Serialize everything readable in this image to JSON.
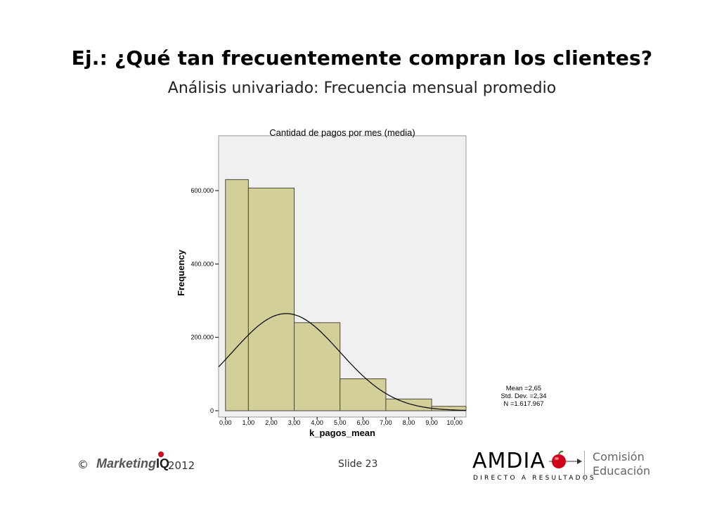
{
  "slide": {
    "title": "Ej.: ¿Qué tan frecuentemente compran los clientes?",
    "subtitle": "Análisis univariado: Frecuencia mensual promedio",
    "footer": {
      "copyright": "©",
      "logo_text": "Marketing",
      "logo_iq": "IQ",
      "year": "2012",
      "slide_label": "Slide  23",
      "brand": "AMDIA",
      "brand_tagline": "DIRECTO A RESULTADOS",
      "commission_line1": "Comisión",
      "commission_line2": "Educación",
      "brand_accent": "#d0021b"
    }
  },
  "chart_data": {
    "type": "bar",
    "title": "Cantidad de pagos por mes (media)",
    "xlabel": "k_pagos_mean",
    "ylabel": "Frequency",
    "xlim": [
      -0.3,
      10.5
    ],
    "ylim": [
      0,
      740000
    ],
    "x_ticks": [
      0,
      1,
      2,
      3,
      4,
      5,
      6,
      7,
      8,
      9,
      10
    ],
    "x_tick_labels": [
      "0,00",
      "1,00",
      "2,00",
      "3,00",
      "4,00",
      "5,00",
      "6,00",
      "7,00",
      "8,00",
      "9,00",
      "10,00"
    ],
    "y_ticks": [
      0,
      200000,
      400000,
      600000
    ],
    "y_tick_labels": [
      "0",
      "200.000",
      "400.000",
      "600.000"
    ],
    "bins": [
      {
        "x0": 0,
        "x1": 1,
        "value": 630000
      },
      {
        "x0": 1,
        "x1": 3,
        "value": 607000
      },
      {
        "x0": 3,
        "x1": 5,
        "value": 240000
      },
      {
        "x0": 5,
        "x1": 7,
        "value": 87000
      },
      {
        "x0": 7,
        "x1": 9,
        "value": 32000
      },
      {
        "x0": 9,
        "x1": 10.5,
        "value": 12000
      }
    ],
    "normal_curve": {
      "mean": 2.65,
      "std_dev": 2.34,
      "n": 1617967,
      "bin_width": 2
    },
    "stats_labels": [
      "Mean =2,65",
      "Std. Dev. =2,34",
      "N =1.617.967"
    ],
    "colors": {
      "bar_fill": "#d3cf98",
      "bar_stroke": "#4a4a3a",
      "plot_bg": "#f0f0f0",
      "curve": "#000000"
    },
    "grid": false
  }
}
